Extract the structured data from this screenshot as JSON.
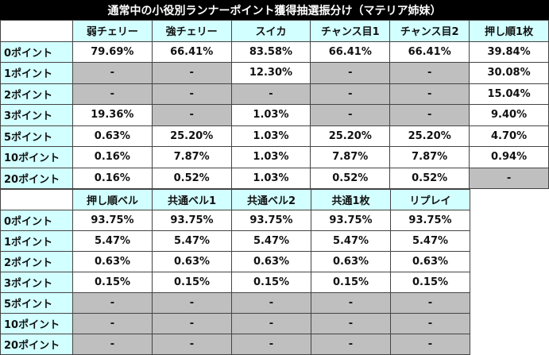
{
  "title": "通常中の小役別ランナーポイント獲得抽選振分け（マテリア姉妹）",
  "table1": {
    "columns": [
      "弱チェリー",
      "強チェリー",
      "スイカ",
      "チャンス目1",
      "チャンス目2",
      "押し順1枚"
    ],
    "rows": [
      {
        "label": "0ポイント",
        "cells": [
          "79.69%",
          "66.41%",
          "83.58%",
          "66.41%",
          "66.41%",
          "39.84%"
        ]
      },
      {
        "label": "1ポイント",
        "cells": [
          "-",
          "-",
          "12.30%",
          "-",
          "-",
          "30.08%"
        ]
      },
      {
        "label": "2ポイント",
        "cells": [
          "-",
          "-",
          "-",
          "-",
          "-",
          "15.04%"
        ]
      },
      {
        "label": "3ポイント",
        "cells": [
          "19.36%",
          "-",
          "1.03%",
          "-",
          "-",
          "9.40%"
        ]
      },
      {
        "label": "5ポイント",
        "cells": [
          "0.63%",
          "25.20%",
          "1.03%",
          "25.20%",
          "25.20%",
          "4.70%"
        ]
      },
      {
        "label": "10ポイント",
        "cells": [
          "0.16%",
          "7.87%",
          "1.03%",
          "7.87%",
          "7.87%",
          "0.94%"
        ]
      },
      {
        "label": "20ポイント",
        "cells": [
          "0.16%",
          "0.52%",
          "1.03%",
          "0.52%",
          "0.52%",
          "-"
        ]
      }
    ]
  },
  "table2": {
    "columns": [
      "押し順ベル",
      "共通ベル1",
      "共通ベル2",
      "共通1枚",
      "リプレイ"
    ],
    "rows": [
      {
        "label": "0ポイント",
        "cells": [
          "93.75%",
          "93.75%",
          "93.75%",
          "93.75%",
          "93.75%"
        ]
      },
      {
        "label": "1ポイント",
        "cells": [
          "5.47%",
          "5.47%",
          "5.47%",
          "5.47%",
          "5.47%"
        ]
      },
      {
        "label": "2ポイント",
        "cells": [
          "0.63%",
          "0.63%",
          "0.63%",
          "0.63%",
          "0.63%"
        ]
      },
      {
        "label": "3ポイント",
        "cells": [
          "0.15%",
          "0.15%",
          "0.15%",
          "0.15%",
          "0.15%"
        ]
      },
      {
        "label": "5ポイント",
        "cells": [
          "-",
          "-",
          "-",
          "-",
          "-"
        ]
      },
      {
        "label": "10ポイント",
        "cells": [
          "-",
          "-",
          "-",
          "-",
          "-"
        ]
      },
      {
        "label": "20ポイント",
        "cells": [
          "-",
          "-",
          "-",
          "-",
          "-"
        ]
      }
    ]
  }
}
